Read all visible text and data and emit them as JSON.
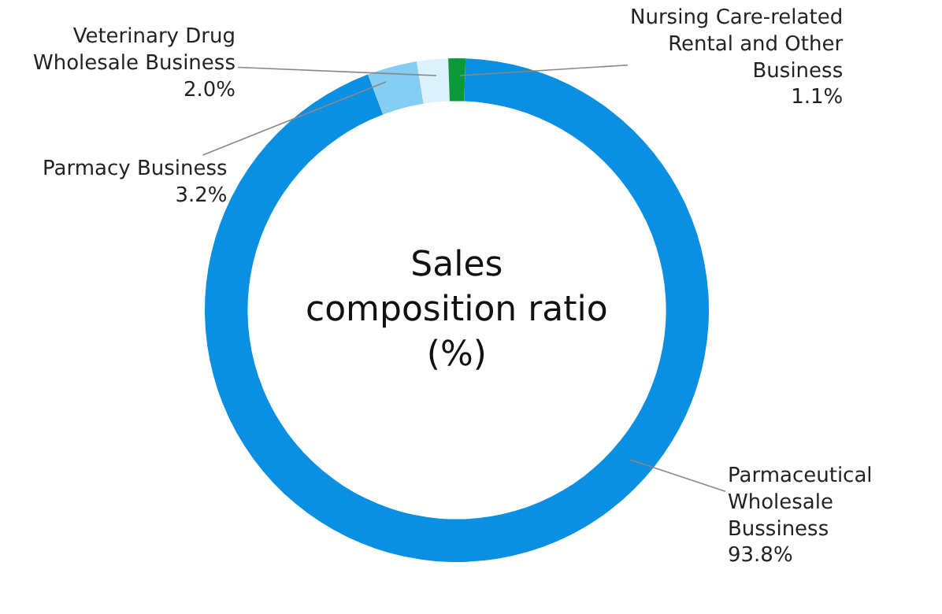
{
  "chart_data": {
    "type": "donut",
    "title": "Sales composition ratio (%)",
    "categories": [
      "Parmaceutical Wholesale Bussiness",
      "Parmacy Business",
      "Veterinary Drug Wholesale Business",
      "Nursing Care-related Rental and Other Business"
    ],
    "values": [
      93.8,
      3.2,
      2.0,
      1.1
    ],
    "value_labels": [
      "93.8%",
      "3.2%",
      "2.0%",
      "1.1%"
    ],
    "colors": [
      "#0a8fe2",
      "#85cdf3",
      "#dcf1fb",
      "#0a9a3c"
    ],
    "legend": false
  }
}
